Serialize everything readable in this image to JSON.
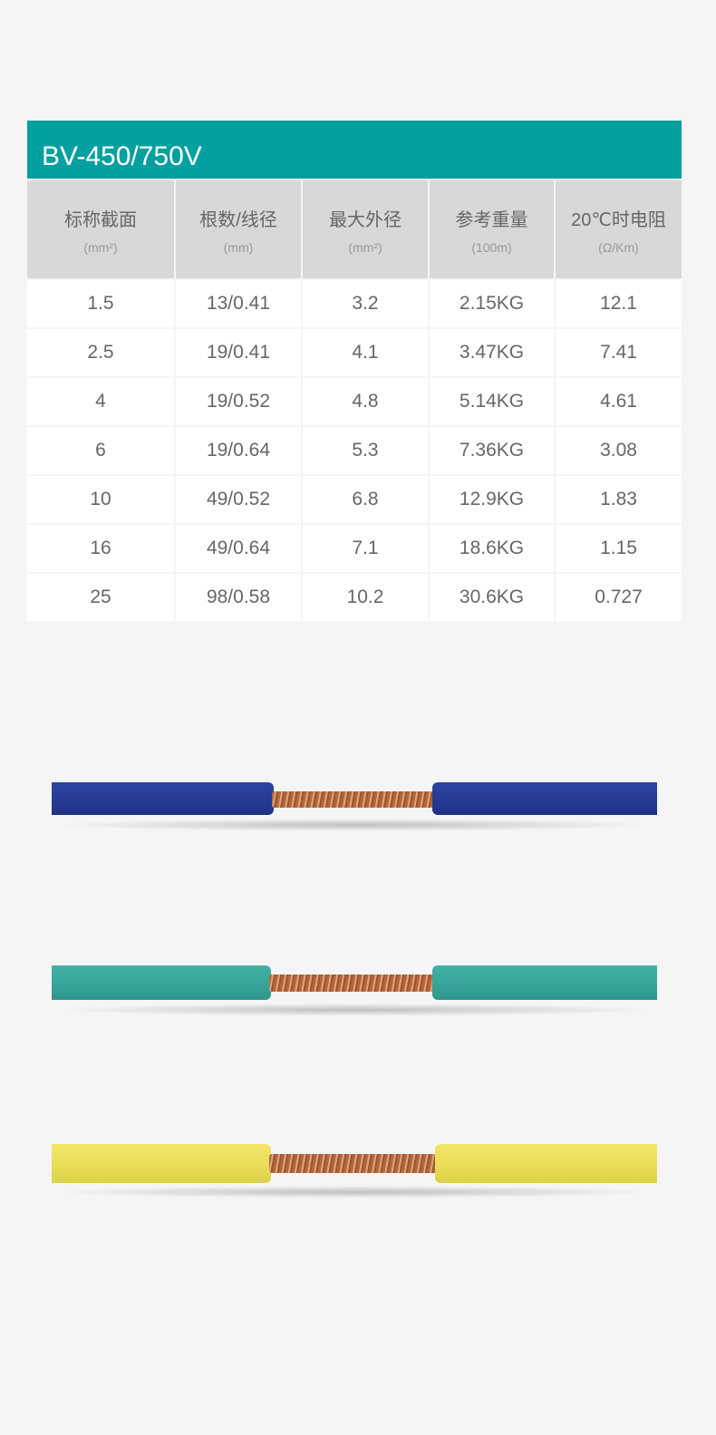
{
  "title": "BV-450/750V",
  "headers": [
    {
      "label": "标称截面",
      "unit": "(mm²)"
    },
    {
      "label": "根数/线径",
      "unit": "(mm)"
    },
    {
      "label": "最大外径",
      "unit": "(mm²)"
    },
    {
      "label": "参考重量",
      "unit": "(100m)"
    },
    {
      "label": "20℃时电阻",
      "unit": "(Ω/Km)"
    }
  ],
  "rows": [
    [
      "1.5",
      "13/0.41",
      "3.2",
      "2.15KG",
      "12.1"
    ],
    [
      "2.5",
      "19/0.41",
      "4.1",
      "3.47KG",
      "7.41"
    ],
    [
      "4",
      "19/0.52",
      "4.8",
      "5.14KG",
      "4.61"
    ],
    [
      "6",
      "19/0.64",
      "5.3",
      "7.36KG",
      "3.08"
    ],
    [
      "10",
      "49/0.52",
      "6.8",
      "12.9KG",
      "1.83"
    ],
    [
      "16",
      "49/0.64",
      "7.1",
      "18.6KG",
      "1.15"
    ],
    [
      "25",
      "98/0.58",
      "10.2",
      "30.6KG",
      "0.727"
    ]
  ],
  "colors": {
    "accent": "#04a09f",
    "wire_blue": "#2a3f9a",
    "wire_teal": "#3aa99e",
    "wire_yellow": "#ece05a",
    "copper": "#c07a50"
  }
}
